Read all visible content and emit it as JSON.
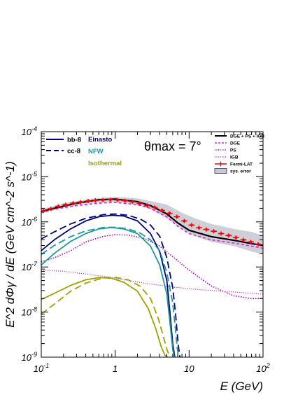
{
  "chart_data": {
    "type": "line",
    "xscale": "log",
    "yscale": "log",
    "xlim": [
      0.1,
      100
    ],
    "ylim": [
      1e-09,
      0.0001
    ],
    "xlabel": "E (GeV)",
    "ylabel": "E^2 dΦγ / dE (GeV cm^-2 s^-1)",
    "annotation": "θmax = 7°",
    "grid": false,
    "x_ticks": [
      "10^-1",
      "1",
      "10",
      "10^2"
    ],
    "y_ticks": [
      "10^-9",
      "10^-8",
      "10^-7",
      "10^-6",
      "10^-5",
      "10^-4"
    ],
    "legend_channel": [
      {
        "label": "bb-8",
        "style": "solid"
      },
      {
        "label": "cc-8",
        "style": "dashed"
      }
    ],
    "legend_profile": [
      {
        "label": "Einasto",
        "color": "#000080"
      },
      {
        "label": "NFW",
        "color": "#1a9a9a"
      },
      {
        "label": "Isothermal",
        "color": "#a0a000"
      }
    ],
    "legend_components": [
      {
        "label": "DGE + PS + IGB",
        "color": "#000000",
        "style": "solid"
      },
      {
        "label": "DGE",
        "color": "#e020e0",
        "style": "dashed"
      },
      {
        "label": "PS",
        "color": "#b000b0",
        "style": "dotted"
      },
      {
        "label": "IGB",
        "color": "#c040c0",
        "style": "dotted"
      },
      {
        "label": "Fermi-LAT",
        "color": "#ff0000",
        "style": "errorbar"
      },
      {
        "label": "sys. error",
        "color": "#c8c8d8",
        "style": "band"
      }
    ],
    "series": [
      {
        "name": "DGE + PS + IGB",
        "color": "#000000",
        "dash": "",
        "width": 2.2,
        "x": [
          0.1,
          0.15,
          0.3,
          0.6,
          1.0,
          2.0,
          3.0,
          5.0,
          7.0,
          10,
          20,
          40,
          70,
          100
        ],
        "y": [
          1.7e-06,
          2e-06,
          2.6e-06,
          3.1e-06,
          3.2e-06,
          2.8e-06,
          2.3e-06,
          1.5e-06,
          9.5e-07,
          6.5e-07,
          4.7e-07,
          3.9e-07,
          3.3e-07,
          3e-07
        ]
      },
      {
        "name": "DGE",
        "color": "#e020e0",
        "dash": "4,3",
        "width": 1.6,
        "x": [
          0.1,
          0.15,
          0.3,
          0.6,
          1.0,
          2.0,
          3.0,
          5.0,
          7.0,
          10,
          20,
          40,
          70,
          100
        ],
        "y": [
          1.6e-06,
          1.9e-06,
          2.3e-06,
          2.6e-06,
          2.7e-06,
          2.4e-06,
          2e-06,
          1.3e-06,
          8e-07,
          5.5e-07,
          4e-07,
          3.4e-07,
          2.9e-07,
          2.6e-07
        ]
      },
      {
        "name": "PS",
        "color": "#b000b0",
        "dash": "1.5,2",
        "width": 1.6,
        "x": [
          0.1,
          0.15,
          0.25,
          0.4,
          0.7,
          1.0,
          1.5,
          2.5,
          4.0,
          6.0,
          10,
          20,
          40,
          70,
          100
        ],
        "y": [
          1.3e-07,
          1.6e-07,
          2.3e-07,
          3.6e-07,
          4.8e-07,
          5.2e-07,
          5.1e-07,
          4.3e-07,
          2.9e-07,
          1.7e-07,
          8.5e-08,
          3.8e-08,
          2.3e-08,
          2e-08,
          2e-08
        ]
      },
      {
        "name": "IGB",
        "color": "#c040c0",
        "dash": "1.2,1.8",
        "width": 1.3,
        "x": [
          0.1,
          0.2,
          0.4,
          0.8,
          1.5,
          3.0,
          6.0,
          10,
          20,
          40,
          70,
          100
        ],
        "y": [
          8.5e-08,
          8e-08,
          7e-08,
          6e-08,
          5e-08,
          4.2e-08,
          3.6e-08,
          3.3e-08,
          3e-08,
          2.8e-08,
          2.6e-08,
          2.5e-08
        ]
      },
      {
        "name": "bb-8 Einasto",
        "color": "#000080",
        "dash": "",
        "width": 1.8,
        "x": [
          0.1,
          0.15,
          0.25,
          0.4,
          0.6,
          0.9,
          1.3,
          2.0,
          3.0,
          4.0,
          5.0,
          5.5,
          6.0,
          6.4
        ],
        "y": [
          2.3e-07,
          4e-07,
          7e-07,
          1.05e-06,
          1.3e-06,
          1.4e-06,
          1.35e-06,
          1.05e-06,
          5.5e-07,
          2.2e-07,
          5e-08,
          1e-08,
          2e-09,
          1e-09
        ]
      },
      {
        "name": "cc-8 Einasto",
        "color": "#000080",
        "dash": "10,5",
        "width": 1.8,
        "x": [
          0.1,
          0.15,
          0.25,
          0.4,
          0.7,
          1.0,
          1.5,
          2.2,
          3.0,
          4.0,
          5.0,
          6.0,
          6.6,
          7.1,
          7.5
        ],
        "y": [
          4.2e-07,
          6e-07,
          9e-07,
          1.2e-06,
          1.45e-06,
          1.5e-06,
          1.4e-06,
          1.15e-06,
          8.5e-07,
          4.8e-07,
          1.6e-07,
          3.5e-08,
          8e-09,
          2e-09,
          1e-09
        ]
      },
      {
        "name": "bb-8 NFW",
        "color": "#1a9a9a",
        "dash": "",
        "width": 1.8,
        "x": [
          0.1,
          0.15,
          0.25,
          0.4,
          0.6,
          0.9,
          1.3,
          2.0,
          3.0,
          4.0,
          5.0,
          5.5,
          6.0,
          6.3
        ],
        "y": [
          1.1e-07,
          2e-07,
          3.7e-07,
          5.5e-07,
          7e-07,
          7.5e-07,
          7e-07,
          5.5e-07,
          2.9e-07,
          1.1e-07,
          2.5e-08,
          6e-09,
          1.5e-09,
          1e-09
        ]
      },
      {
        "name": "cc-8 NFW",
        "color": "#1a9a9a",
        "dash": "10,5",
        "width": 1.8,
        "x": [
          0.1,
          0.15,
          0.25,
          0.4,
          0.7,
          1.0,
          1.5,
          2.2,
          3.0,
          4.0,
          5.0,
          6.0,
          6.5,
          6.9,
          7.2
        ],
        "y": [
          1.9e-07,
          3e-07,
          4.7e-07,
          6.3e-07,
          7.5e-07,
          7.6e-07,
          7e-07,
          5.6e-07,
          4e-07,
          2.3e-07,
          7.5e-08,
          1.6e-08,
          4.5e-09,
          1.6e-09,
          1e-09
        ]
      },
      {
        "name": "bb-8 Isothermal",
        "color": "#a0a000",
        "dash": "",
        "width": 1.8,
        "x": [
          0.1,
          0.15,
          0.25,
          0.4,
          0.6,
          0.9,
          1.3,
          2.0,
          2.8,
          3.5,
          4.2,
          4.7,
          5.1
        ],
        "y": [
          1.9e-08,
          2.6e-08,
          3.9e-08,
          5.2e-08,
          5.8e-08,
          5.6e-08,
          4.6e-08,
          2.9e-08,
          1.2e-08,
          4.5e-09,
          1.7e-09,
          1.1e-09,
          1e-09
        ]
      },
      {
        "name": "cc-8 Isothermal",
        "color": "#a0a000",
        "dash": "10,5",
        "width": 1.8,
        "x": [
          0.1,
          0.15,
          0.25,
          0.4,
          0.7,
          1.0,
          1.5,
          2.2,
          3.0,
          3.8,
          4.5,
          5.0,
          5.5
        ],
        "y": [
          9e-09,
          1.5e-08,
          2.9e-08,
          4.4e-08,
          5.8e-08,
          5.9e-08,
          5.2e-08,
          3.7e-08,
          2e-08,
          7.5e-09,
          2.8e-09,
          1.5e-09,
          1e-09
        ]
      }
    ],
    "sys_error_band": {
      "x": [
        0.1,
        0.2,
        0.5,
        1,
        2,
        3,
        5,
        8,
        12,
        20,
        40,
        70,
        100
      ],
      "low": [
        1.6e-06,
        2.1e-06,
        2.6e-06,
        2.8e-06,
        2.4e-06,
        1.9e-06,
        1.2e-06,
        7e-07,
        4.8e-07,
        3.6e-07,
        2.9e-07,
        2.2e-07,
        1.9e-07
      ],
      "high": [
        1.9e-06,
        2.6e-06,
        3.3e-06,
        3.6e-06,
        3.3e-06,
        2.9e-06,
        2.4e-06,
        1.6e-06,
        1.2e-06,
        9e-07,
        7e-07,
        6e-07,
        5e-07
      ]
    },
    "fermi_lat": {
      "x": [
        0.107,
        0.135,
        0.17,
        0.214,
        0.27,
        0.34,
        0.43,
        0.54,
        0.68,
        0.86,
        1.08,
        1.36,
        1.71,
        2.15,
        2.71,
        3.42,
        4.3,
        5.42,
        6.83,
        8.6,
        10.8,
        13.6,
        17.1,
        21.5,
        27.1,
        34.2,
        43.0,
        54.2,
        68.3,
        86.0
      ],
      "y": [
        1.75e-06,
        1.95e-06,
        2.2e-06,
        2.4e-06,
        2.6e-06,
        2.75e-06,
        2.9e-06,
        3e-06,
        3.05e-06,
        3.1e-06,
        3.05e-06,
        2.95e-06,
        2.8e-06,
        2.55e-06,
        2.3e-06,
        2.1e-06,
        1.8e-06,
        1.55e-06,
        1.3e-06,
        1.05e-06,
        8.5e-07,
        7.4e-07,
        6.8e-07,
        6.2e-07,
        5.5e-07,
        5e-07,
        4.5e-07,
        4e-07,
        3.6e-07,
        3.2e-07
      ]
    }
  }
}
